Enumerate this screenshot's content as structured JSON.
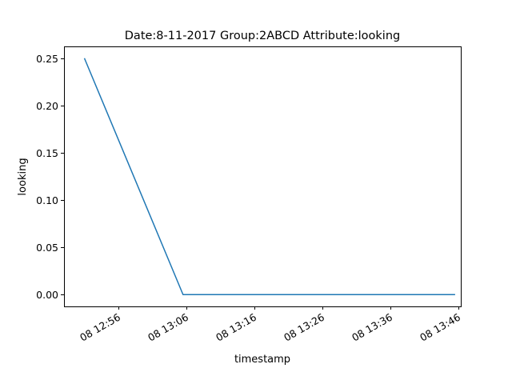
{
  "chart_data": {
    "type": "line",
    "title": "Date:8-11-2017  Group:2ABCD Attribute:looking",
    "xlabel": "timestamp",
    "ylabel": "looking",
    "x_type": "datetime",
    "xlim": [
      "2017-08-11T12:48:00",
      "2017-08-11T13:46:20"
    ],
    "ylim": [
      -0.0125,
      0.2625
    ],
    "x_ticks": [
      "2017-08-11T12:56:00",
      "2017-08-11T13:06:00",
      "2017-08-11T13:16:00",
      "2017-08-11T13:26:00",
      "2017-08-11T13:36:00",
      "2017-08-11T13:46:00"
    ],
    "x_tick_labels": [
      "08 12:56",
      "08 13:06",
      "08 13:16",
      "08 13:26",
      "08 13:36",
      "08 13:46"
    ],
    "y_ticks": [
      0.0,
      0.05,
      0.1,
      0.15,
      0.2,
      0.25
    ],
    "y_tick_labels": [
      "0.00",
      "0.05",
      "0.10",
      "0.15",
      "0.20",
      "0.25"
    ],
    "grid": false,
    "legend": "none",
    "series": [
      {
        "color": "#1f77b4",
        "points": [
          {
            "x": "2017-08-11T12:51:00",
            "y": 0.25
          },
          {
            "x": "2017-08-11T13:05:30",
            "y": 0.0
          },
          {
            "x": "2017-08-11T13:45:30",
            "y": 0.0
          }
        ]
      }
    ]
  }
}
